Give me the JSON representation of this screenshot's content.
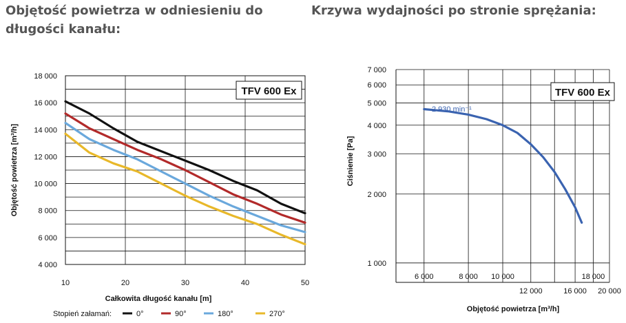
{
  "headings": {
    "left": "Objętość powietrza w odniesieniu do długości kanału:",
    "right": "Krzywa wydajności po stronie sprężania:"
  },
  "chart_data": [
    {
      "type": "line",
      "box_label": "TFV 600 Ex",
      "xlabel": "Całkowita długość kanału [m]",
      "ylabel": "Objętość powietrza [m³/h]",
      "xlim": [
        10,
        50
      ],
      "ylim": [
        4000,
        18000
      ],
      "x_ticks": [
        "10",
        "20",
        "30",
        "40",
        "50"
      ],
      "y_ticks": [
        "4 000",
        "6 000",
        "8 000",
        "10 000",
        "12 000",
        "14 000",
        "16 000",
        "18 000"
      ],
      "legend_title": "Stopień załamań:",
      "series": [
        {
          "name": "0°",
          "color": "#111111",
          "x": [
            10,
            14,
            18,
            22,
            26,
            30,
            34,
            38,
            42,
            46,
            50
          ],
          "y": [
            16100,
            15200,
            14100,
            13100,
            12400,
            11700,
            11000,
            10200,
            9500,
            8500,
            7800
          ]
        },
        {
          "name": "90°",
          "color": "#b22a2a",
          "x": [
            10,
            14,
            18,
            22,
            26,
            30,
            34,
            38,
            42,
            46,
            50
          ],
          "y": [
            15200,
            14100,
            13300,
            12500,
            11800,
            11000,
            10100,
            9200,
            8500,
            7700,
            7100
          ]
        },
        {
          "name": "180°",
          "color": "#6aa8dc",
          "x": [
            10,
            14,
            18,
            22,
            26,
            30,
            34,
            38,
            42,
            46,
            50
          ],
          "y": [
            14500,
            13300,
            12500,
            11800,
            10900,
            10000,
            9100,
            8300,
            7600,
            6900,
            6400
          ]
        },
        {
          "name": "270°",
          "color": "#e8b82a",
          "x": [
            10,
            14,
            18,
            22,
            26,
            30,
            34,
            38,
            42,
            46,
            50
          ],
          "y": [
            13700,
            12300,
            11500,
            10900,
            10000,
            9100,
            8300,
            7600,
            7000,
            6200,
            5500
          ]
        }
      ]
    },
    {
      "type": "line",
      "box_label": "TFV 600 Ex",
      "xlabel": "Objętość powietrza [m³/h]",
      "ylabel": "Ciśnienie [Pa]",
      "x_scale": "log",
      "y_scale": "log",
      "xlim": [
        5000,
        20000
      ],
      "ylim": [
        900,
        7000
      ],
      "x_ticks_upper": [
        "6 000",
        "8 000",
        "10 000",
        "18 000"
      ],
      "x_ticks_lower": [
        "12 000",
        "16 000",
        "20 000"
      ],
      "y_ticks": [
        "1 000",
        "2 000",
        "3 000",
        "4 000",
        "5 000",
        "6 000",
        "7 000"
      ],
      "curve_label": "2 930 min⁻¹",
      "curve_color": "#3a63b0",
      "series": [
        {
          "name": "2 930 min⁻¹",
          "x": [
            6000,
            7000,
            8000,
            9000,
            10000,
            11000,
            12000,
            13000,
            14000,
            15000,
            16000,
            16700
          ],
          "y": [
            4700,
            4600,
            4450,
            4250,
            4000,
            3700,
            3300,
            2900,
            2500,
            2100,
            1750,
            1500
          ]
        }
      ]
    }
  ]
}
